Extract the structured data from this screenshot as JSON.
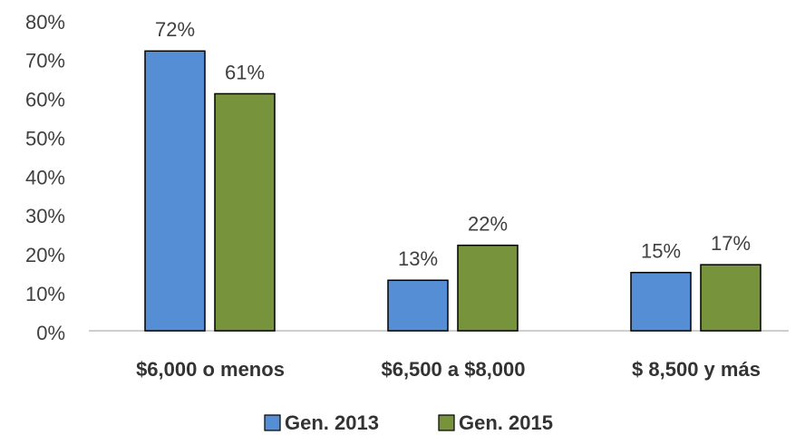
{
  "chart_data": {
    "type": "bar",
    "categories": [
      "$6,000 o menos",
      "$6,500 a $8,000",
      "$ 8,500 y más"
    ],
    "series": [
      {
        "name": "Gen. 2013",
        "color": "#558ed5",
        "values": [
          72,
          13,
          15
        ],
        "value_labels": [
          "72%",
          "13%",
          "15%"
        ]
      },
      {
        "name": "Gen. 2015",
        "color": "#77933c",
        "values": [
          61,
          22,
          17
        ],
        "value_labels": [
          "61%",
          "22%",
          "17%"
        ]
      }
    ],
    "ylim": [
      0,
      80
    ],
    "yticks": [
      {
        "value": 0,
        "label": "0%"
      },
      {
        "value": 10,
        "label": "10%"
      },
      {
        "value": 20,
        "label": "20%"
      },
      {
        "value": 30,
        "label": "30%"
      },
      {
        "value": 40,
        "label": "40%"
      },
      {
        "value": 50,
        "label": "50%"
      },
      {
        "value": 60,
        "label": "60%"
      },
      {
        "value": 70,
        "label": "70%"
      },
      {
        "value": 80,
        "label": "80%"
      }
    ],
    "grid": false,
    "legend": "bottom"
  }
}
